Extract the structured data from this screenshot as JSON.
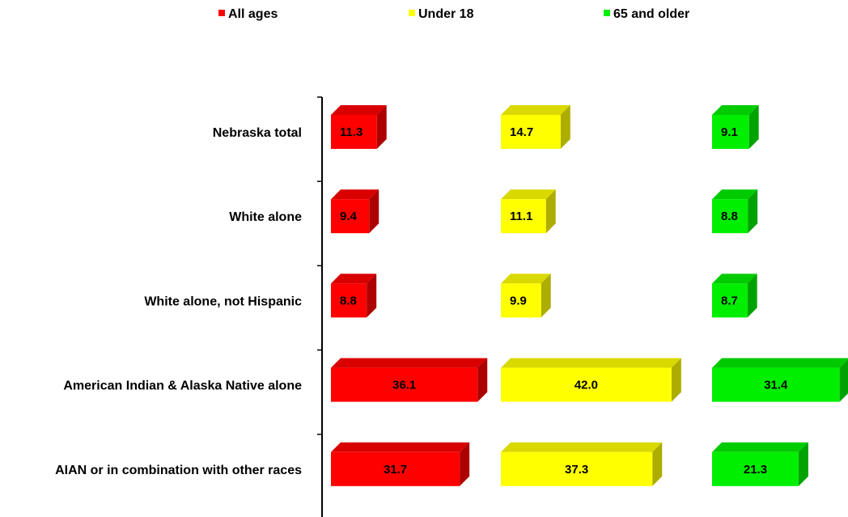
{
  "chart_data": {
    "type": "bar",
    "orientation": "horizontal",
    "style": "3d-panel",
    "categories": [
      "Nebraska total",
      "White alone",
      "White alone, not Hispanic",
      "American Indian & Alaska Native alone",
      "AIAN or in combination  with other races"
    ],
    "series": [
      {
        "name": "All ages",
        "color": "#ff0000",
        "values": [
          11.3,
          9.4,
          8.8,
          36.1,
          31.7
        ],
        "labels": [
          "11.3",
          "9.4",
          "8.8",
          "36.1",
          "31.7"
        ]
      },
      {
        "name": "Under 18",
        "color": "#ffff00",
        "values": [
          14.7,
          11.1,
          9.9,
          42.0,
          37.3
        ],
        "labels": [
          "14.7",
          "11.1",
          "9.9",
          "42.0",
          "37.3"
        ]
      },
      {
        "name": "65 and older",
        "color": "#00ee00",
        "values": [
          9.1,
          8.8,
          8.7,
          31.4,
          21.3
        ],
        "labels": [
          "9.1",
          "8.8",
          "8.7",
          "31.4",
          "21.3"
        ]
      }
    ],
    "legend_position": "top",
    "grid": false
  }
}
